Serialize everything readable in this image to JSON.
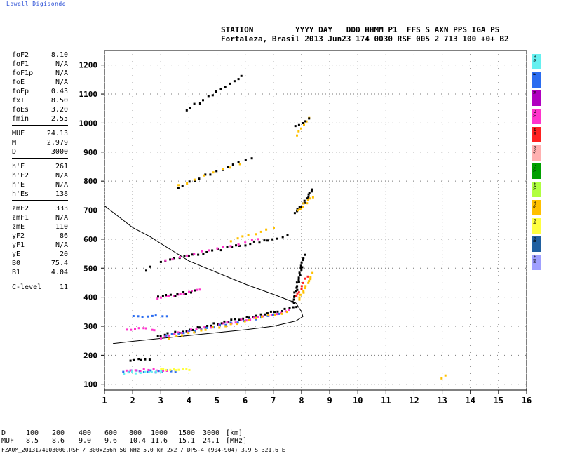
{
  "brand": "Lowell Digisonde",
  "header": {
    "keys": "STATION         YYYY DAY   DDD HHMM P1  FFS S AXN PPS IGA PS",
    "values": "Fortaleza, Brasil 2013 Jun23 174 0030 RSF 005 2 713 100 +0+ B2"
  },
  "params": [
    [
      [
        "foF2",
        "8.10"
      ],
      [
        "foF1",
        "N/A"
      ],
      [
        "foF1p",
        "N/A"
      ],
      [
        "foE",
        "N/A"
      ],
      [
        "foEp",
        "0.43"
      ],
      [
        "fxI",
        "8.50"
      ],
      [
        "foEs",
        "3.20"
      ],
      [
        "fmin",
        "2.55"
      ]
    ],
    [
      [
        "MUF",
        "24.13"
      ],
      [
        "M",
        "2.979"
      ],
      [
        "D",
        "3000"
      ]
    ],
    [
      [
        "h'F",
        "261"
      ],
      [
        "h'F2",
        "N/A"
      ],
      [
        "h'E",
        "N/A"
      ],
      [
        "h'Es",
        "138"
      ]
    ],
    [
      [
        "zmF2",
        "333"
      ],
      [
        "zmF1",
        "N/A"
      ],
      [
        "zmE",
        "110"
      ],
      [
        "yF2",
        "86"
      ],
      [
        "yF1",
        "N/A"
      ],
      [
        "yE",
        "20"
      ],
      [
        "B0",
        "75.4"
      ],
      [
        "B1",
        "4.04"
      ]
    ],
    [
      [
        "C-level",
        "11"
      ]
    ]
  ],
  "legend": [
    {
      "label": "Nne",
      "color": "#66f0f0"
    },
    {
      "label": "E",
      "color": "#2a6cf0"
    },
    {
      "label": "W",
      "color": "#b000c0"
    },
    {
      "label": "Vo-",
      "color": "#ff33cc"
    },
    {
      "label": "Vo+",
      "color": "#ff2020"
    },
    {
      "label": "Ssw",
      "color": "#ffb0b0"
    },
    {
      "label": "Vx-",
      "color": "#00a000"
    },
    {
      "label": "Vx+",
      "color": "#b0ff40"
    },
    {
      "label": "Sse",
      "color": "#ffc000"
    },
    {
      "label": "Nw",
      "color": "#ffff40"
    },
    {
      "label": "Nw",
      "color": "#2060a0"
    },
    {
      "label": "Hi+",
      "color": "#a0a0ff"
    }
  ],
  "muf_table": {
    "d_label": "D",
    "d_values": [
      "100",
      "200",
      "400",
      "600",
      "800",
      "1000",
      "1500",
      "3000"
    ],
    "d_unit": "[km]",
    "muf_label": "MUF",
    "muf_values": [
      "8.5",
      "8.6",
      "9.0",
      "9.6",
      "10.4",
      "11.6",
      "15.1",
      "24.1"
    ],
    "muf_unit": "[MHz]"
  },
  "footer": "FZA0M_2013174003000.RSF / 300x256h 50 kHz 5.0 km 2x2 / DPS-4 (904-904)  3.9 S 321.6 E",
  "chart_data": {
    "type": "scatter",
    "xlim": [
      1,
      16
    ],
    "ylim": [
      80,
      1250
    ],
    "xticks": [
      "1",
      "2",
      "3",
      "4",
      "5",
      "6",
      "7",
      "8",
      "9",
      "10",
      "11",
      "12",
      "13",
      "14",
      "15",
      "16"
    ],
    "yticks": [
      "100",
      "200",
      "300",
      "400",
      "500",
      "600",
      "700",
      "800",
      "900",
      "1000",
      "1100",
      "1200"
    ],
    "grid": true,
    "profile_curve": [
      [
        7.8,
        380
      ],
      [
        7.0,
        410
      ],
      [
        6.0,
        445
      ],
      [
        5.0,
        485
      ],
      [
        4.0,
        525
      ],
      [
        3.5,
        555
      ],
      [
        3.0,
        585
      ],
      [
        2.6,
        610
      ],
      [
        2.0,
        640
      ],
      [
        1.6,
        670
      ],
      [
        1.2,
        700
      ],
      [
        1.0,
        715
      ]
    ],
    "profile_curve_lower": [
      [
        1.3,
        240
      ],
      [
        2.0,
        248
      ],
      [
        3.0,
        258
      ],
      [
        4.0,
        268
      ],
      [
        5.0,
        278
      ],
      [
        6.0,
        288
      ],
      [
        7.0,
        300
      ],
      [
        7.8,
        318
      ],
      [
        8.05,
        333
      ],
      [
        8.0,
        350
      ],
      [
        7.9,
        365
      ],
      [
        7.8,
        380
      ]
    ],
    "traces": [
      {
        "color": "#000000",
        "from": [
          2.9,
          265
        ],
        "to": [
          7.8,
          365
        ],
        "n": 40
      },
      {
        "color": "#ff33cc",
        "from": [
          3.0,
          262
        ],
        "to": [
          7.6,
          355
        ],
        "n": 30
      },
      {
        "color": "#2a6cf0",
        "from": [
          3.2,
          266
        ],
        "to": [
          7.2,
          340
        ],
        "n": 20
      },
      {
        "color": "#ffc000",
        "from": [
          3.3,
          260
        ],
        "to": [
          7.5,
          350
        ],
        "n": 20
      },
      {
        "color": "#000000",
        "from": [
          7.7,
          380
        ],
        "to": [
          8.1,
          545
        ],
        "n": 25
      },
      {
        "color": "#ffc000",
        "from": [
          7.9,
          390
        ],
        "to": [
          8.4,
          480
        ],
        "n": 12
      },
      {
        "color": "#ff2020",
        "from": [
          7.8,
          400
        ],
        "to": [
          8.2,
          470
        ],
        "n": 8
      },
      {
        "color": "#000000",
        "from": [
          3.0,
          525
        ],
        "to": [
          7.5,
          610
        ],
        "n": 28
      },
      {
        "color": "#ff33cc",
        "from": [
          3.2,
          528
        ],
        "to": [
          6.5,
          600
        ],
        "n": 14
      },
      {
        "color": "#ffc000",
        "from": [
          5.5,
          595
        ],
        "to": [
          7.0,
          640
        ],
        "n": 8
      },
      {
        "color": "#000000",
        "from": [
          7.8,
          690
        ],
        "to": [
          8.4,
          770
        ],
        "n": 14
      },
      {
        "color": "#ffc000",
        "from": [
          7.9,
          700
        ],
        "to": [
          8.4,
          745
        ],
        "n": 8
      },
      {
        "color": "#000000",
        "from": [
          3.6,
          780
        ],
        "to": [
          6.2,
          880
        ],
        "n": 14
      },
      {
        "color": "#ffc000",
        "from": [
          3.6,
          785
        ],
        "to": [
          5.8,
          860
        ],
        "n": 8
      },
      {
        "color": "#000000",
        "from": [
          3.9,
          1045
        ],
        "to": [
          5.9,
          1160
        ],
        "n": 14
      },
      {
        "color": "#ffc000",
        "from": [
          7.8,
          960
        ],
        "to": [
          8.3,
          1020
        ],
        "n": 6
      },
      {
        "color": "#000000",
        "from": [
          7.8,
          990
        ],
        "to": [
          8.3,
          1015
        ],
        "n": 5
      },
      {
        "color": "#ff33cc",
        "from": [
          2.9,
          395
        ],
        "to": [
          4.4,
          425
        ],
        "n": 12
      },
      {
        "color": "#000000",
        "from": [
          2.9,
          400
        ],
        "to": [
          4.2,
          420
        ],
        "n": 10
      },
      {
        "color": "#2a6cf0",
        "from": [
          1.7,
          145
        ],
        "to": [
          3.5,
          145
        ],
        "n": 14
      },
      {
        "color": "#ff33cc",
        "from": [
          1.8,
          150
        ],
        "to": [
          3.2,
          150
        ],
        "n": 10
      },
      {
        "color": "#66f0f0",
        "from": [
          1.7,
          140
        ],
        "to": [
          3.0,
          140
        ],
        "n": 10
      },
      {
        "color": "#ffff40",
        "from": [
          3.0,
          150
        ],
        "to": [
          4.0,
          152
        ],
        "n": 10
      },
      {
        "color": "#2a6cf0",
        "from": [
          2.0,
          335
        ],
        "to": [
          3.2,
          335
        ],
        "n": 8
      },
      {
        "color": "#ff33cc",
        "from": [
          1.8,
          290
        ],
        "to": [
          2.8,
          290
        ],
        "n": 8
      },
      {
        "color": "#000000",
        "from": [
          1.9,
          185
        ],
        "to": [
          2.6,
          185
        ],
        "n": 6
      },
      {
        "color": "#000000",
        "from": [
          2.5,
          495
        ],
        "to": [
          2.6,
          505
        ],
        "n": 2
      },
      {
        "color": "#ffc000",
        "from": [
          13.0,
          120
        ],
        "to": [
          13.1,
          130
        ],
        "n": 2
      }
    ]
  }
}
